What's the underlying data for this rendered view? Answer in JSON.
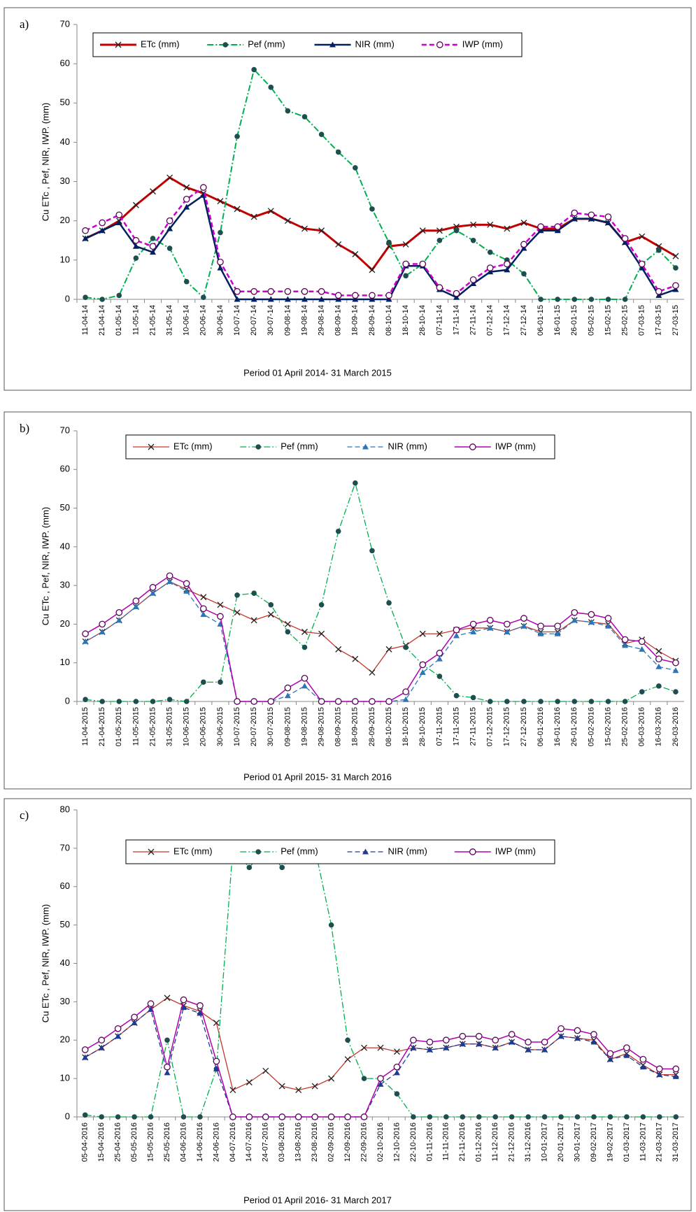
{
  "chart_data": [
    {
      "type": "line",
      "label": "a)",
      "y_label": "Cu ETc , Pef, NIR, IWP. (mm)",
      "x_label": "Period  01 April 2014- 31 March 2015",
      "categories": [
        "11-04-14",
        "21-04-14",
        "01-05-14",
        "11-05-14",
        "21-05-14",
        "31-05-14",
        "10-06-14",
        "20-06-14",
        "30-06-14",
        "10-07-14",
        "20-07-14",
        "30-07-14",
        "09-08-14",
        "19-08-14",
        "29-08-14",
        "08-09-14",
        "18-09-14",
        "28-09-14",
        "08-10-14",
        "18-10-14",
        "28-10-14",
        "07-11-14",
        "17-11-14",
        "27-11-14",
        "07-12-14",
        "17-12-14",
        "27-12-14",
        "06-01-15",
        "16-01-15",
        "26-01-15",
        "05-02-15",
        "15-02-15",
        "25-02-15",
        "07-03-15",
        "17-03-15",
        "27-03-15"
      ],
      "ylim": [
        0,
        70
      ],
      "yticks": [
        0,
        10,
        20,
        30,
        40,
        50,
        60,
        70
      ],
      "grid": false,
      "legend": "top-left",
      "series": [
        {
          "name": "ETc (mm)",
          "color": "#c00000",
          "line_width": 3,
          "dash": "solid",
          "marker": "x",
          "marker_color": "#202020",
          "values": [
            15.5,
            17.5,
            20,
            24,
            27.5,
            31,
            28.5,
            27,
            25,
            23,
            21,
            22.5,
            20,
            18,
            17.5,
            14,
            11.5,
            7.5,
            13.5,
            14,
            17.5,
            17.5,
            18.5,
            19,
            19,
            18,
            19.5,
            18,
            18,
            20.5,
            20.5,
            19.5,
            14.5,
            16,
            13.5,
            11
          ]
        },
        {
          "name": "Pef (mm)",
          "color": "#00b050",
          "line_width": 2,
          "dash": "dashdot",
          "marker": "dot",
          "marker_color": "#1f4e4e",
          "values": [
            0.5,
            0,
            1,
            10.5,
            15.5,
            13,
            4.5,
            0.5,
            17,
            41.5,
            58.5,
            54,
            48,
            46.5,
            42,
            37.5,
            33.5,
            23,
            14.5,
            6,
            9,
            15,
            17.5,
            15,
            12,
            10,
            6.5,
            0,
            0,
            0,
            0,
            0,
            0,
            9,
            12.5,
            8
          ]
        },
        {
          "name": "NIR (mm)",
          "color": "#002060",
          "line_width": 2.5,
          "dash": "solid",
          "marker": "triangle",
          "marker_color": "#002060",
          "values": [
            15.5,
            17.5,
            19.5,
            13.5,
            12,
            18,
            23.5,
            26.5,
            8,
            0,
            0,
            0,
            0,
            0,
            0,
            0,
            0,
            0,
            0,
            8.5,
            8.5,
            2.5,
            0.5,
            4,
            7,
            7.5,
            13,
            17.5,
            17.5,
            20.5,
            20.5,
            19.5,
            14.5,
            8,
            1,
            2.5
          ]
        },
        {
          "name": "IWP (mm)",
          "color": "#cc00cc",
          "line_width": 2.5,
          "dash": "dashed",
          "marker": "ring",
          "marker_color": "#5a005a",
          "values": [
            17.5,
            19.5,
            21.5,
            15,
            13.5,
            20,
            25.5,
            28.5,
            9.5,
            2,
            2,
            2,
            2,
            2,
            2,
            1,
            1,
            1,
            1,
            9,
            9,
            3,
            1.5,
            5,
            8,
            9,
            14,
            18.5,
            18.5,
            22,
            21.5,
            21,
            15.5,
            9,
            2,
            3.5
          ]
        }
      ]
    },
    {
      "type": "line",
      "label": "b)",
      "y_label": "Cu ETc , Pef, NIR, IWP. (mm)",
      "x_label": "Period  01 April 2015- 31 March 2016",
      "categories": [
        "11-04-2015",
        "21-04-2015",
        "01-05-2015",
        "11-05-2015",
        "21-05-2015",
        "31-05-2015",
        "10-06-2015",
        "20-06-2015",
        "30-06-2015",
        "10-07-2015",
        "20-07-2015",
        "30-07-2015",
        "09-08-2015",
        "19-08-2015",
        "29-08-2015",
        "08-09-2015",
        "18-09-2015",
        "28-09-2015",
        "08-10-2015",
        "18-10-2015",
        "28-10-2015",
        "07-11-2015",
        "17-11-2015",
        "27-11-2015",
        "07-12-2015",
        "17-12-2015",
        "27-12-2015",
        "06-01-2016",
        "16-01-2016",
        "26-01-2016",
        "05-02-2016",
        "15-02-2016",
        "25-02-2016",
        "06-03-2016",
        "16-03-2016",
        "26-03-2016"
      ],
      "ylim": [
        0,
        70
      ],
      "yticks": [
        0,
        10,
        20,
        30,
        40,
        50,
        60,
        70
      ],
      "grid": false,
      "legend": "top",
      "series": [
        {
          "name": "ETc (mm)",
          "color": "#c0392b",
          "line_width": 1.3,
          "dash": "solid",
          "marker": "x",
          "marker_color": "#202020",
          "values": [
            15.5,
            18,
            21,
            24.5,
            28,
            31,
            29,
            27,
            25,
            23,
            21,
            22.5,
            20,
            18,
            17.5,
            13.5,
            11,
            7.5,
            13.5,
            14.5,
            17.5,
            17.5,
            18.5,
            19,
            19,
            18,
            19.5,
            18,
            18,
            21,
            20.5,
            20,
            15,
            16,
            13,
            10.5
          ]
        },
        {
          "name": "Pef (mm)",
          "color": "#00b050",
          "line_width": 1.3,
          "dash": "dashdot",
          "marker": "dot",
          "marker_color": "#1f4e4e",
          "values": [
            0.5,
            0,
            0,
            0,
            0,
            0.5,
            0,
            5,
            5,
            27.5,
            28,
            25,
            18,
            14,
            25,
            44,
            56.5,
            39,
            25.5,
            14,
            9.5,
            6.5,
            1.5,
            1,
            0,
            0,
            0,
            0,
            0,
            0,
            0,
            0,
            0,
            2.5,
            4,
            2.5
          ]
        },
        {
          "name": "NIR (mm)",
          "color": "#2e75b6",
          "line_width": 1.3,
          "dash": "dashed",
          "marker": "triangle",
          "marker_color": "#2e75b6",
          "values": [
            15.5,
            18,
            21,
            24.5,
            28,
            31,
            28.5,
            22.5,
            20,
            0,
            0,
            0,
            1.5,
            4,
            0,
            0,
            0,
            0,
            0,
            0.5,
            7.5,
            11,
            17,
            18,
            19,
            18,
            19.5,
            17.5,
            17.5,
            21,
            20.5,
            19.5,
            14.5,
            13.5,
            9,
            8
          ]
        },
        {
          "name": "IWP (mm)",
          "color": "#b000b0",
          "line_width": 1.5,
          "dash": "solid",
          "marker": "ring",
          "marker_color": "#5a005a",
          "values": [
            17.5,
            20,
            23,
            26,
            29.5,
            32.5,
            30.5,
            24,
            22,
            0,
            0,
            0,
            3.5,
            6,
            0,
            0,
            0,
            0,
            0,
            2.5,
            9.5,
            12.5,
            18.5,
            20,
            21,
            20,
            21.5,
            19.5,
            19.5,
            23,
            22.5,
            21.5,
            16,
            15.5,
            11,
            10
          ]
        }
      ]
    },
    {
      "type": "line",
      "label": "c)",
      "y_label": "Cu ETc , Pef, NIR, IWP. (mm)",
      "x_label": "Period  01 April 2016- 31 March 2017",
      "categories": [
        "05-04-2016",
        "15-04-2016",
        "25-04-2016",
        "05-05-2016",
        "15-05-2016",
        "25-05-2016",
        "04-06-2016",
        "14-06-2016",
        "24-06-2016",
        "04-07-2016",
        "14-07-2016",
        "24-07-2016",
        "03-08-2016",
        "13-08-2016",
        "23-08-2016",
        "02-09-2016",
        "12-09-2016",
        "22-09-2016",
        "02-10-2016",
        "12-10-2016",
        "22-10-2016",
        "01-11-2016",
        "11-11-2016",
        "21-11-2016",
        "01-12-2016",
        "11-12-2016",
        "21-12-2016",
        "31-12-2016",
        "10-01-2017",
        "20-01-2017",
        "30-01-2017",
        "09-02-2017",
        "19-02-2017",
        "01-03-2017",
        "11-03-2017",
        "21-03-2017",
        "31-03-2017"
      ],
      "ylim": [
        0,
        80
      ],
      "yticks": [
        0,
        10,
        20,
        30,
        40,
        50,
        60,
        70,
        80
      ],
      "grid": false,
      "legend": "top",
      "series": [
        {
          "name": "ETc (mm)",
          "color": "#c0392b",
          "line_width": 1.3,
          "dash": "solid",
          "marker": "x",
          "marker_color": "#202020",
          "values": [
            15.5,
            18,
            21,
            24.5,
            28,
            31,
            29,
            27.5,
            24.5,
            7,
            9,
            12,
            8,
            7,
            8,
            10,
            15,
            18,
            18,
            17,
            18,
            17.5,
            18,
            19,
            19,
            18,
            19.5,
            17.5,
            17.5,
            21,
            20.5,
            20,
            15,
            16.5,
            13.5,
            11,
            11
          ]
        },
        {
          "name": "Pef (mm)",
          "color": "#00b050",
          "line_width": 1.3,
          "dash": "dashdot",
          "marker": "dot",
          "marker_color": "#1f4e4e",
          "values": [
            0.5,
            0,
            0,
            0,
            0,
            20,
            0,
            0,
            12.5,
            70,
            65,
            70,
            65,
            70,
            70,
            50,
            20,
            10,
            10,
            6,
            0,
            0,
            0,
            0,
            0,
            0,
            0,
            0,
            0,
            0,
            0,
            0,
            0,
            0,
            0,
            0,
            0
          ]
        },
        {
          "name": "NIR (mm)",
          "color": "#1f3a93",
          "line_width": 1.3,
          "dash": "dashed",
          "marker": "triangle",
          "marker_color": "#1f3a93",
          "values": [
            15.5,
            18,
            21,
            24.5,
            28,
            11.5,
            28.5,
            27,
            12.5,
            0,
            0,
            0,
            0,
            0,
            0,
            0,
            0,
            0,
            8.5,
            11.5,
            18,
            17.5,
            18,
            19,
            19,
            18,
            19.5,
            17.5,
            17.5,
            21,
            20.5,
            19.5,
            15,
            16,
            13,
            11,
            10.5
          ]
        },
        {
          "name": "IWP (mm)",
          "color": "#b000b0",
          "line_width": 1.5,
          "dash": "solid",
          "marker": "ring",
          "marker_color": "#5a005a",
          "values": [
            17.5,
            20,
            23,
            26,
            29.5,
            13,
            30.5,
            29,
            14.5,
            0,
            0,
            0,
            0,
            0,
            0,
            0,
            0,
            0,
            10,
            13,
            20,
            19.5,
            20,
            21,
            21,
            20,
            21.5,
            19.5,
            19.5,
            23,
            22.5,
            21.5,
            16.5,
            18,
            15,
            12.5,
            12.5
          ]
        }
      ]
    }
  ]
}
